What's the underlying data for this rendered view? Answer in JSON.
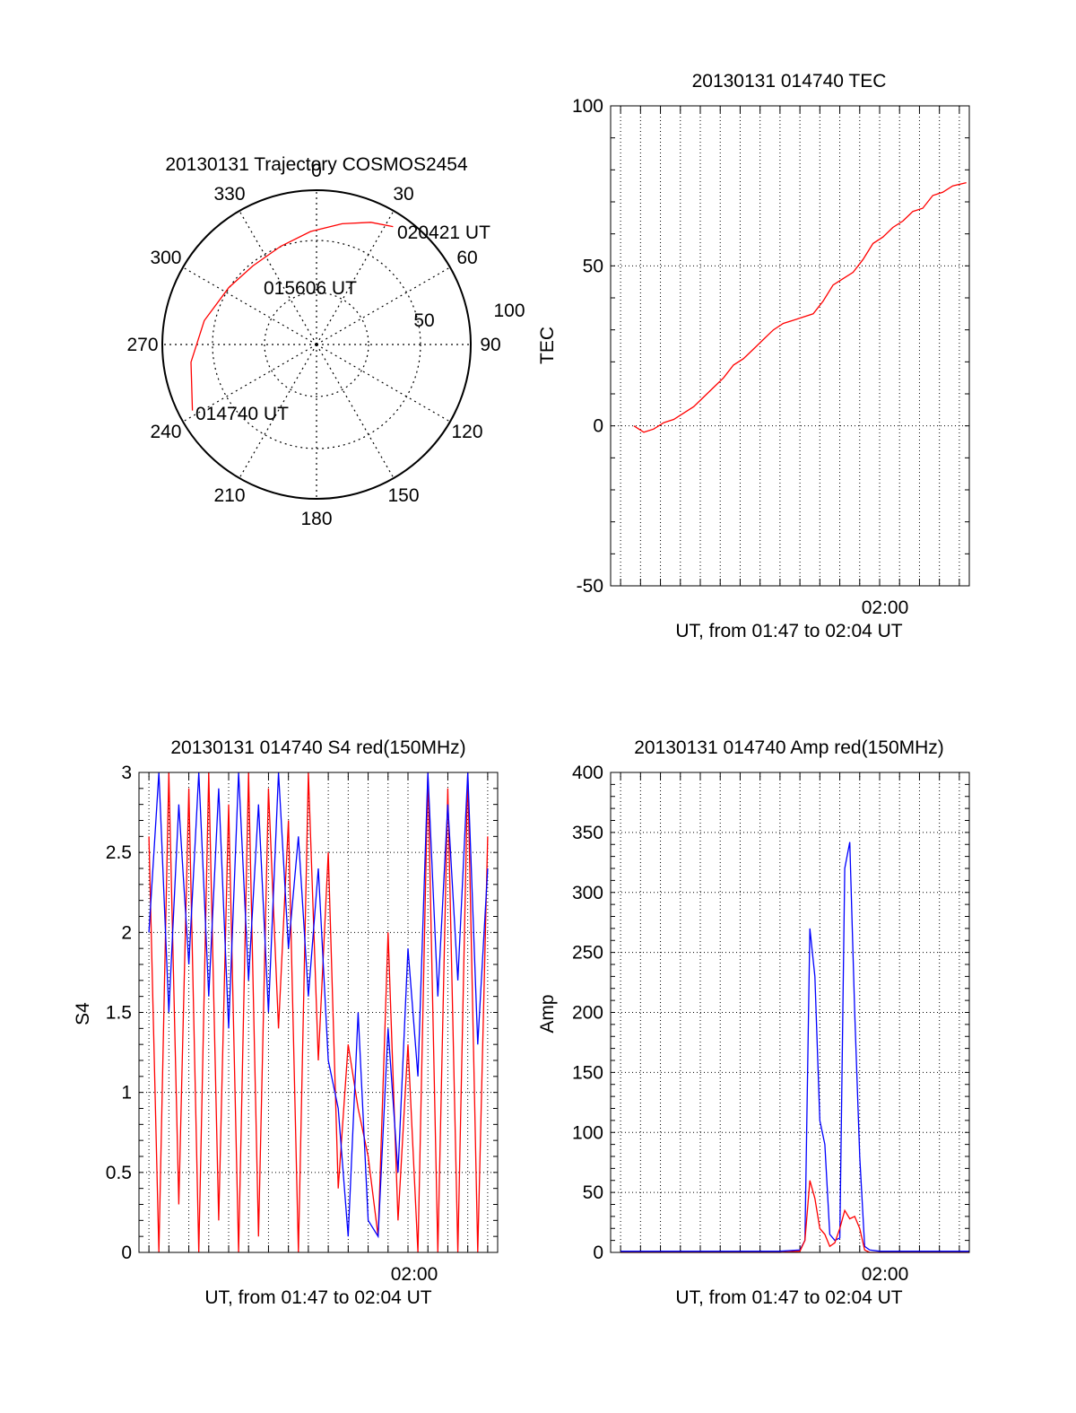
{
  "chart_data": [
    {
      "type": "polar",
      "title": "20130131 Trajectory COSMOS2454",
      "angle_labels": [
        "0",
        "30",
        "60",
        "90",
        "120",
        "150",
        "180",
        "210",
        "240",
        "270",
        "300",
        "330"
      ],
      "radius_labels": [
        "50",
        "100"
      ],
      "trajectory": {
        "color": "#ff0000",
        "points": [
          {
            "azimuth": 242,
            "zenith": 82
          },
          {
            "azimuth": 262,
            "zenith": 74
          },
          {
            "azimuth": 282,
            "zenith": 67
          },
          {
            "azimuth": 303,
            "zenith": 61
          },
          {
            "azimuth": 321,
            "zenith": 59
          },
          {
            "azimuth": 340,
            "zenith": 61
          },
          {
            "azimuth": 357,
            "zenith": 66
          },
          {
            "azimuth": 12,
            "zenith": 72
          },
          {
            "azimuth": 24,
            "zenith": 78
          },
          {
            "azimuth": 33,
            "zenith": 82
          }
        ]
      },
      "annotations": [
        {
          "text": "020421 UT",
          "azimuth": 33,
          "zenith": 82
        },
        {
          "text": "015606 UT",
          "azimuth": 321,
          "zenith": 59
        },
        {
          "text": "014740 UT",
          "azimuth": 242,
          "zenith": 82
        }
      ]
    },
    {
      "type": "line",
      "title": "20130131 014740 TEC",
      "xlabel": "UT, from 01:47 to 02:04 UT",
      "ylabel": "TEC",
      "ylim": [
        -50,
        100
      ],
      "xlim": [
        "01:46:30",
        "02:04:30"
      ],
      "yticks": [
        "100",
        "50",
        "0",
        "-50"
      ],
      "xtick_label": "02:00",
      "grid": true,
      "series": [
        {
          "color": "#ff0000",
          "x": [
            "01:47:40",
            "01:48:10",
            "01:48:40",
            "01:49:10",
            "01:49:40",
            "01:50:10",
            "01:50:40",
            "01:51:10",
            "01:51:40",
            "01:52:10",
            "01:52:40",
            "01:53:10",
            "01:53:40",
            "01:54:10",
            "01:54:40",
            "01:55:10",
            "01:55:40",
            "01:56:10",
            "01:56:40",
            "01:57:10",
            "01:57:40",
            "01:58:10",
            "01:58:40",
            "01:59:10",
            "01:59:40",
            "02:00:10",
            "02:00:40",
            "02:01:10",
            "02:01:40",
            "02:02:10",
            "02:02:40",
            "02:03:10",
            "02:03:40",
            "02:04:21"
          ],
          "values": [
            0,
            -2,
            -1,
            1,
            2,
            4,
            6,
            9,
            12,
            15,
            19,
            21,
            24,
            27,
            30,
            32,
            33,
            34,
            35,
            39,
            44,
            46,
            48,
            52,
            57,
            59,
            62,
            64,
            67,
            68,
            72,
            73,
            75,
            76
          ]
        }
      ]
    },
    {
      "type": "line",
      "title": "20130131 014740 S4 red(150MHz)",
      "xlabel": "UT, from 01:47 to 02:04 UT",
      "ylabel": "S4",
      "ylim": [
        0,
        3
      ],
      "xlim": [
        "01:46:30",
        "02:04:30"
      ],
      "yticks": [
        "3",
        "2.5",
        "2",
        "1.5",
        "1",
        "0.5",
        "0"
      ],
      "xtick_label": "02:00",
      "grid": true,
      "series": [
        {
          "color": "#ff0000",
          "x": [
            "01:47:00",
            "01:47:30",
            "01:48:00",
            "01:48:30",
            "01:49:00",
            "01:49:30",
            "01:50:00",
            "01:50:30",
            "01:51:00",
            "01:51:30",
            "01:52:00",
            "01:52:30",
            "01:53:00",
            "01:53:30",
            "01:54:00",
            "01:54:30",
            "01:55:00",
            "01:55:30",
            "01:56:00",
            "01:56:30",
            "01:57:00",
            "01:57:30",
            "01:58:00",
            "01:58:30",
            "01:59:00",
            "01:59:30",
            "02:00:00",
            "02:00:30",
            "02:01:00",
            "02:01:30",
            "02:02:00",
            "02:02:30",
            "02:03:00",
            "02:03:30",
            "02:04:00"
          ],
          "values": [
            2.6,
            0.0,
            3.0,
            0.3,
            2.9,
            0.0,
            3.0,
            0.2,
            2.8,
            0.0,
            3.0,
            0.1,
            2.9,
            1.4,
            2.7,
            0.0,
            3.0,
            1.2,
            2.5,
            0.4,
            1.3,
            0.9,
            0.6,
            0.1,
            2.0,
            0.2,
            1.3,
            0.0,
            3.0,
            0.0,
            2.9,
            0.0,
            3.0,
            0.0,
            2.6
          ]
        },
        {
          "color": "#0000ff",
          "x": [
            "01:47:00",
            "01:47:30",
            "01:48:00",
            "01:48:30",
            "01:49:00",
            "01:49:30",
            "01:50:00",
            "01:50:30",
            "01:51:00",
            "01:51:30",
            "01:52:00",
            "01:52:30",
            "01:53:00",
            "01:53:30",
            "01:54:00",
            "01:54:30",
            "01:55:00",
            "01:55:30",
            "01:56:00",
            "01:56:30",
            "01:57:00",
            "01:57:30",
            "01:58:00",
            "01:58:30",
            "01:59:00",
            "01:59:30",
            "02:00:00",
            "02:00:30",
            "02:01:00",
            "02:01:30",
            "02:02:00",
            "02:02:30",
            "02:03:00",
            "02:03:30",
            "02:04:00"
          ],
          "values": [
            2.0,
            3.0,
            1.5,
            2.8,
            1.8,
            3.0,
            1.6,
            2.9,
            1.4,
            3.0,
            1.7,
            2.8,
            1.5,
            3.0,
            1.9,
            2.6,
            1.6,
            2.4,
            1.2,
            0.9,
            0.1,
            1.5,
            0.2,
            0.1,
            1.4,
            0.5,
            1.9,
            1.1,
            3.0,
            1.6,
            2.8,
            1.7,
            3.0,
            1.3,
            2.4
          ]
        }
      ]
    },
    {
      "type": "line",
      "title": "20130131 014740 Amp red(150MHz)",
      "xlabel": "UT, from 01:47 to 02:04 UT",
      "ylabel": "Amp",
      "ylim": [
        0,
        400
      ],
      "xlim": [
        "01:46:30",
        "02:04:30"
      ],
      "yticks": [
        "400",
        "350",
        "300",
        "250",
        "200",
        "150",
        "100",
        "50",
        "0"
      ],
      "xtick_label": "02:00",
      "grid": true,
      "series": [
        {
          "color": "#0000ff",
          "x": [
            "01:47:00",
            "01:55:00",
            "01:56:00",
            "01:56:15",
            "01:56:30",
            "01:56:45",
            "01:57:00",
            "01:57:15",
            "01:57:30",
            "01:57:45",
            "01:58:00",
            "01:58:15",
            "01:58:30",
            "01:58:45",
            "01:59:00",
            "01:59:15",
            "01:59:30",
            "02:00:00",
            "02:04:30"
          ],
          "values": [
            1,
            1,
            2,
            10,
            270,
            230,
            110,
            90,
            15,
            10,
            12,
            320,
            342,
            200,
            80,
            5,
            2,
            1,
            1
          ]
        },
        {
          "color": "#ff0000",
          "x": [
            "01:47:00",
            "01:55:00",
            "01:56:00",
            "01:56:15",
            "01:56:30",
            "01:56:45",
            "01:57:00",
            "01:57:15",
            "01:57:30",
            "01:57:45",
            "01:58:00",
            "01:58:15",
            "01:58:30",
            "01:58:45",
            "01:59:00",
            "01:59:15",
            "01:59:30",
            "02:00:00",
            "02:04:30"
          ],
          "values": [
            0,
            0,
            1,
            10,
            60,
            45,
            20,
            15,
            5,
            8,
            20,
            35,
            28,
            30,
            20,
            2,
            0,
            0,
            0
          ]
        }
      ]
    }
  ]
}
